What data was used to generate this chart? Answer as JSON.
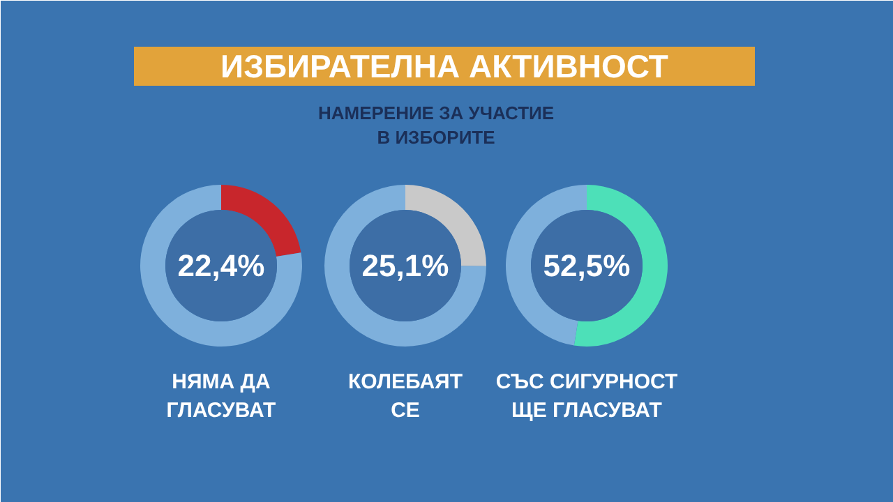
{
  "chart_data": [
    {
      "type": "donut",
      "xlabel": "НЯМА ДА\nГЛАСУВАТ",
      "categories": [
        null,
        null
      ],
      "values": [
        22.4,
        77.6
      ],
      "colors": [
        "#c8262c",
        "#7eb0dc"
      ],
      "value_labels": [
        "22,4%",
        null
      ]
    },
    {
      "type": "donut",
      "title": "ИЗБИРАТЕЛНА АКТИВНОСТ",
      "subtitle": "НАМЕРЕНИЕ ЗА УЧАСТИЕ\nВ ИЗБОРИТЕ",
      "xlabel": "КОЛЕБАЯТ\nСЕ",
      "categories": [
        null,
        null
      ],
      "values": [
        25.1,
        74.9
      ],
      "colors": [
        "#c9c9c9",
        "#7eb0dc"
      ],
      "value_labels": [
        "25,1%",
        null
      ]
    },
    {
      "type": "donut",
      "xlabel": "СЪС СИГУРНОСТ\nЩЕ ГЛАСУВАТ",
      "categories": [
        null,
        null
      ],
      "values": [
        52.5,
        47.5
      ],
      "colors": [
        "#4de0b8",
        "#7eb0dc"
      ],
      "value_labels": [
        "52,5%",
        null
      ]
    }
  ]
}
